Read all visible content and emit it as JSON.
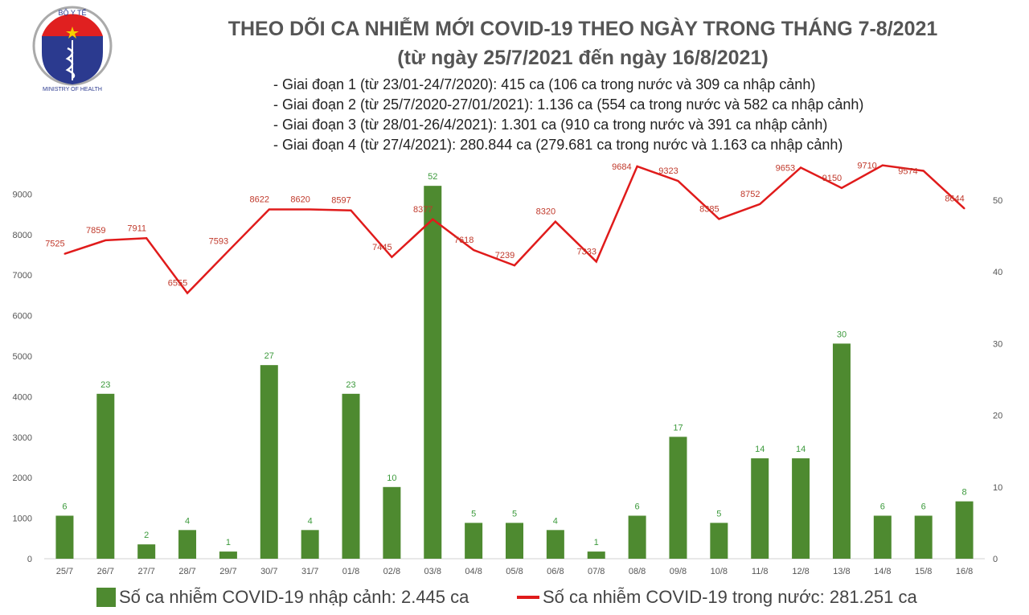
{
  "logo": {
    "top_text": "BỘ Y TẾ",
    "bottom_text": "MINISTRY OF HEALTH"
  },
  "title": "THEO DÕI CA NHIỄM MỚI COVID-19 THEO NGÀY TRONG THÁNG 7-8/2021",
  "subtitle": "(từ ngày 25/7/2021 đến ngày 16/8/2021)",
  "notes": [
    "- Giai đoạn 1 (từ 23/01-24/7/2020): 415 ca (106 ca trong nước và 309 ca nhập cảnh)",
    "- Giai đoạn 2 (từ 25/7/2020-27/01/2021): 1.136 ca (554 ca trong nước và 582 ca nhập cảnh)",
    "- Giai đoạn 3 (từ 28/01-26/4/2021): 1.301 ca (910 ca trong nước và 391 ca nhập cảnh)",
    "- Giai đoạn 4 (từ 27/4/2021): 280.844 ca (279.681 ca trong nước và 1.163 ca nhập cảnh)"
  ],
  "chart_data": {
    "type": "bar+line",
    "categories": [
      "25/7",
      "26/7",
      "27/7",
      "28/7",
      "29/7",
      "30/7",
      "31/7",
      "01/8",
      "02/8",
      "03/8",
      "04/8",
      "05/8",
      "06/8",
      "07/8",
      "08/8",
      "09/8",
      "10/8",
      "11/8",
      "12/8",
      "13/8",
      "14/8",
      "15/8",
      "16/8"
    ],
    "series": [
      {
        "name": "Số ca nhiễm COVID-19 nhập cảnh: 2.445 ca",
        "type": "bar",
        "axis": "right",
        "color": "#4e8a30",
        "values": [
          6,
          23,
          2,
          4,
          1,
          27,
          4,
          23,
          10,
          52,
          5,
          5,
          4,
          1,
          6,
          17,
          5,
          14,
          14,
          30,
          6,
          6,
          8
        ]
      },
      {
        "name": "Số ca nhiễm COVID-19 trong nước: 281.251 ca",
        "type": "line",
        "axis": "left",
        "color": "#e01b1b",
        "values": [
          7525,
          7859,
          7911,
          6555,
          7593,
          8622,
          8620,
          8597,
          7445,
          8377,
          7618,
          7239,
          8320,
          7333,
          9684,
          9323,
          8385,
          8752,
          9653,
          9150,
          9710,
          9574,
          8644
        ]
      }
    ],
    "left_axis": {
      "ticks": [
        0,
        1000,
        2000,
        3000,
        4000,
        5000,
        6000,
        7000,
        8000,
        9000
      ]
    },
    "right_axis": {
      "ticks": [
        0,
        10,
        20,
        30,
        40,
        50
      ]
    },
    "grid": false,
    "legend": "bottom"
  }
}
